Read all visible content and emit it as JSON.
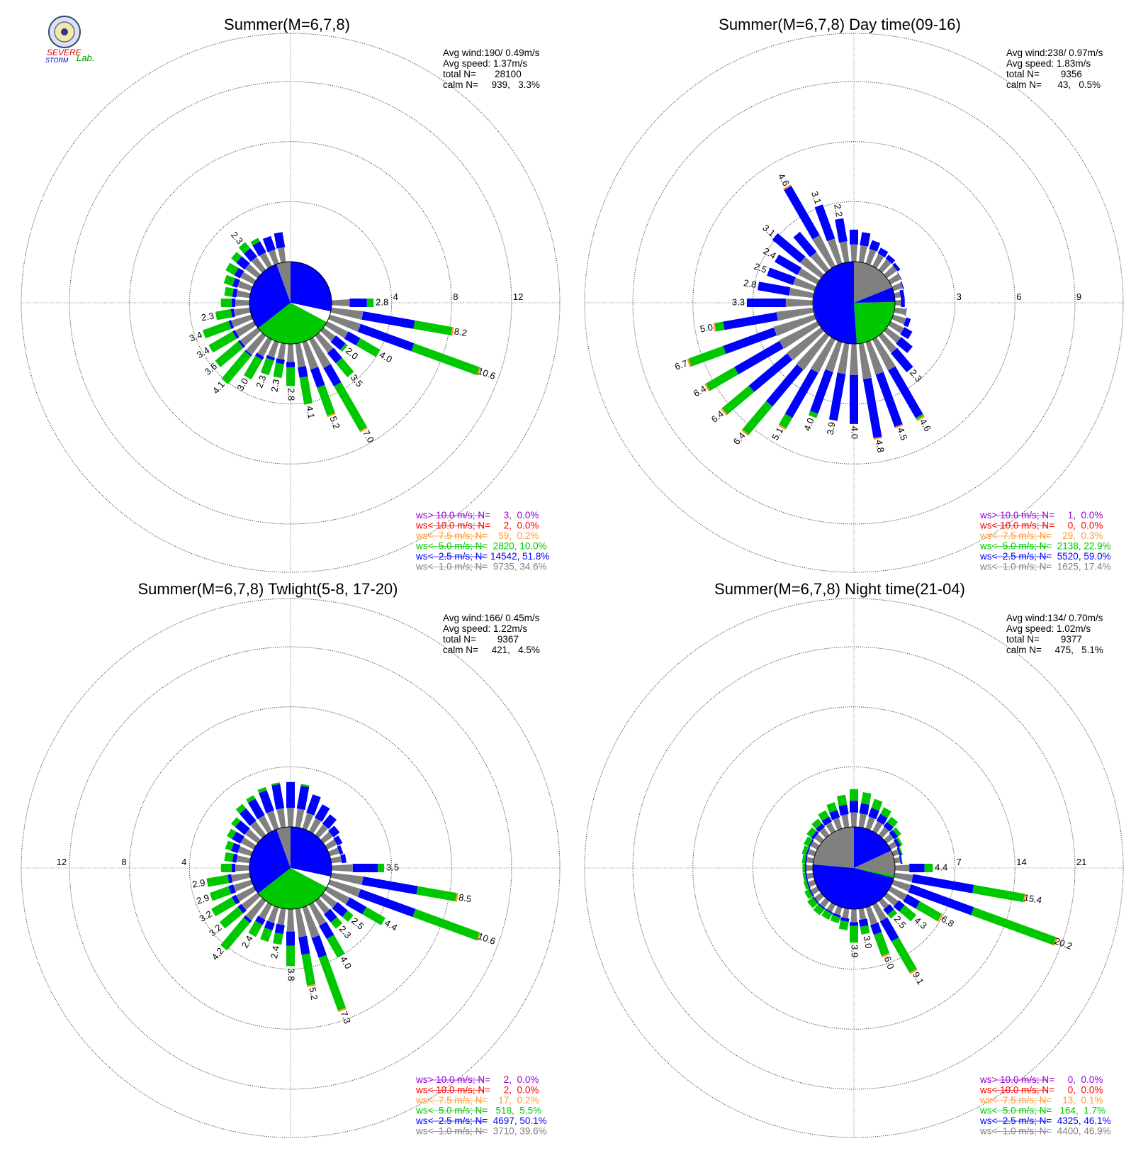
{
  "logo": {
    "line1": "SEVERE",
    "line2": "STORM",
    "lab": "Lab."
  },
  "legend_colors": [
    "#9400d3",
    "#ff0000",
    "#ff9933",
    "#00c800",
    "#0000ff",
    "#808080"
  ],
  "calm_color": "#808080",
  "chart_data": [
    {
      "type": "wind-rose",
      "title": "Summer(M=6,7,8)",
      "info": [
        "Avg wind:190/ 0.49m/s",
        "Avg speed: 1.37m/s",
        "total N=       28100",
        "calm N=     939,   3.3%"
      ],
      "rings": [
        4,
        8,
        12
      ],
      "ring_labels": [
        "4",
        "8",
        "12"
      ],
      "axis_side": "right",
      "rmax": 14,
      "calm_pct": 3.3,
      "pie": [
        {
          "from": 0,
          "to": 102,
          "c": 5
        },
        {
          "from": 102,
          "to": 118,
          "c": 3
        },
        {
          "from": 118,
          "to": 232,
          "c": 4
        },
        {
          "from": 232,
          "to": 340,
          "c": 5
        },
        {
          "from": 340,
          "to": 360,
          "c": 6
        }
      ],
      "bars": [
        [
          0,
          0,
          1.5
        ],
        [
          10,
          0,
          1.2
        ],
        [
          20,
          0,
          1.1
        ],
        [
          30,
          0,
          0.9
        ],
        [
          40,
          0,
          0.8
        ],
        [
          50,
          0,
          0.7
        ],
        [
          60,
          0,
          0.5
        ],
        [
          70,
          0,
          0.4
        ],
        [
          80,
          0,
          0.9
        ],
        [
          90,
          2.8,
          1.6
        ],
        [
          100,
          8.2,
          4.3
        ],
        [
          110,
          10.6,
          4.6
        ],
        [
          120,
          4.0,
          1.5
        ],
        [
          130,
          2.0,
          1.2
        ],
        [
          140,
          3.5,
          1.4
        ],
        [
          150,
          7.0,
          2.2
        ],
        [
          160,
          5.2,
          2.0
        ],
        [
          170,
          4.1,
          1.3
        ],
        [
          180,
          2.8,
          0.8
        ],
        [
          190,
          2.3,
          0.7
        ],
        [
          200,
          2.3,
          0.6
        ],
        [
          210,
          3.0,
          0.7
        ],
        [
          220,
          4.1,
          0.7
        ],
        [
          230,
          3.6,
          0.7
        ],
        [
          240,
          3.4,
          0.7
        ],
        [
          250,
          3.4,
          0.7
        ],
        [
          260,
          2.3,
          0.6
        ],
        [
          270,
          1.9,
          0.6
        ],
        [
          280,
          1.7,
          0.6
        ],
        [
          290,
          1.9,
          0.7
        ],
        [
          300,
          2.1,
          0.8
        ],
        [
          310,
          2.2,
          1.1
        ],
        [
          320,
          2.3,
          1.1
        ],
        [
          330,
          2.1,
          1.2
        ],
        [
          340,
          1.9,
          1.3
        ],
        [
          350,
          2.0,
          1.6
        ]
      ],
      "labeled": [
        {
          "dir": 90,
          "text": "2.8"
        },
        {
          "dir": 100,
          "text": "8.2"
        },
        {
          "dir": 110,
          "text": "10.6"
        },
        {
          "dir": 120,
          "text": "4.0"
        },
        {
          "dir": 130,
          "text": "2.0"
        },
        {
          "dir": 140,
          "text": "3.5"
        },
        {
          "dir": 150,
          "text": "7.0"
        },
        {
          "dir": 160,
          "text": "5.2"
        },
        {
          "dir": 170,
          "text": "4.1"
        },
        {
          "dir": 180,
          "text": "2.8"
        },
        {
          "dir": 190,
          "text": "2.3"
        },
        {
          "dir": 200,
          "text": "2.3"
        },
        {
          "dir": 210,
          "text": "3.0"
        },
        {
          "dir": 220,
          "text": "4.1"
        },
        {
          "dir": 230,
          "text": "3.6"
        },
        {
          "dir": 240,
          "text": "3.4"
        },
        {
          "dir": 250,
          "text": "3.4"
        },
        {
          "dir": 260,
          "text": "2.3"
        },
        {
          "dir": 320,
          "text": "2.3"
        }
      ],
      "legend": [
        "ws> 10.0 m/s; N=     3,  0.0%",
        "ws< 10.0 m/s; N=     2,  0.0%",
        "ws<  7.5 m/s; N=    59,  0.2%",
        "ws<  5.0 m/s; N=  2820, 10.0%",
        "ws<  2.5 m/s; N= 14542, 51.8%",
        "ws<  1.0 m/s; N=  9735, 34.6%"
      ]
    },
    {
      "type": "wind-rose",
      "title": "Summer(M=6,7,8) Day time(09-16)",
      "info": [
        "Avg wind:238/ 0.97m/s",
        "Avg speed: 1.83m/s",
        "total N=        9356",
        "calm N=      43,   0.5%"
      ],
      "rings": [
        3,
        6,
        9
      ],
      "ring_labels": [
        "3",
        "6",
        "9"
      ],
      "axis_side": "right",
      "rmax": 10.5,
      "calm_pct": 0.5,
      "pie": [
        {
          "from": 0,
          "to": 68,
          "c": 6
        },
        {
          "from": 68,
          "to": 89,
          "c": 5
        },
        {
          "from": 89,
          "to": 176,
          "c": 4
        },
        {
          "from": 176,
          "to": 360,
          "c": 5
        }
      ],
      "bars": [
        [
          0,
          1.6,
          1.6
        ],
        [
          10,
          1.5,
          1.3
        ],
        [
          20,
          1.2,
          1.0
        ],
        [
          30,
          1.0,
          0.8
        ],
        [
          40,
          0.9,
          0.7
        ],
        [
          50,
          0.8,
          0.6
        ],
        [
          60,
          0.6,
          0.5
        ],
        [
          70,
          0.5,
          0.4
        ],
        [
          80,
          0.3,
          0.2
        ],
        [
          90,
          0.3,
          0.2
        ],
        [
          100,
          0.6,
          0.5
        ],
        [
          110,
          0.9,
          0.7
        ],
        [
          120,
          1.2,
          0.9
        ],
        [
          130,
          1.6,
          1.1
        ],
        [
          140,
          2.3,
          1.8
        ],
        [
          150,
          4.6,
          3.4
        ],
        [
          160,
          4.5,
          3.5
        ],
        [
          170,
          4.8,
          3.9
        ],
        [
          180,
          4.0,
          3.2
        ],
        [
          190,
          3.9,
          3.0
        ],
        [
          200,
          4.0,
          2.8
        ],
        [
          210,
          5.1,
          3.3
        ],
        [
          220,
          6.4,
          3.2
        ],
        [
          230,
          6.4,
          3.3
        ],
        [
          240,
          6.4,
          3.4
        ],
        [
          250,
          6.7,
          3.5
        ],
        [
          260,
          5.0,
          3.4
        ],
        [
          270,
          3.3,
          2.9
        ],
        [
          280,
          2.8,
          2.5
        ],
        [
          290,
          2.5,
          2.2
        ],
        [
          300,
          2.4,
          2.1
        ],
        [
          310,
          3.1,
          2.8
        ],
        [
          320,
          2.4,
          2.2
        ],
        [
          330,
          4.6,
          4.1
        ],
        [
          340,
          3.1,
          2.9
        ],
        [
          350,
          2.2,
          2.1
        ]
      ],
      "labeled": [
        {
          "dir": 140,
          "text": "2.3"
        },
        {
          "dir": 150,
          "text": "4.6"
        },
        {
          "dir": 160,
          "text": "4.5"
        },
        {
          "dir": 170,
          "text": "4.8"
        },
        {
          "dir": 180,
          "text": "4.0"
        },
        {
          "dir": 190,
          "text": "3.9"
        },
        {
          "dir": 200,
          "text": "4.0"
        },
        {
          "dir": 210,
          "text": "5.1"
        },
        {
          "dir": 220,
          "text": "6.4"
        },
        {
          "dir": 230,
          "text": "6.4"
        },
        {
          "dir": 240,
          "text": "6.4"
        },
        {
          "dir": 250,
          "text": "6.7"
        },
        {
          "dir": 260,
          "text": "5.0"
        },
        {
          "dir": 270,
          "text": "3.3"
        },
        {
          "dir": 280,
          "text": "2.8"
        },
        {
          "dir": 290,
          "text": "2.5"
        },
        {
          "dir": 300,
          "text": "2.4"
        },
        {
          "dir": 310,
          "text": "3.1"
        },
        {
          "dir": 330,
          "text": "4.6"
        },
        {
          "dir": 340,
          "text": "3.1"
        },
        {
          "dir": 350,
          "text": "2.2"
        }
      ],
      "legend": [
        "ws> 10.0 m/s; N=     1,  0.0%",
        "ws< 10.0 m/s; N=     0,  0.0%",
        "ws<  7.5 m/s; N=    29,  0.3%",
        "ws<  5.0 m/s; N=  2138, 22.9%",
        "ws<  2.5 m/s; N=  5520, 59.0%",
        "ws<  1.0 m/s; N=  1625, 17.4%"
      ]
    },
    {
      "type": "wind-rose",
      "title": "Summer(M=6,7,8) Twlight(5-8, 17-20)",
      "info": [
        "Avg wind:166/ 0.45m/s",
        "Avg speed: 1.22m/s",
        "total N=        9367",
        "calm N=     421,   4.5%"
      ],
      "rings": [
        4,
        8,
        12
      ],
      "ring_labels": [
        "4",
        "8",
        "12"
      ],
      "axis_side": "left",
      "rmax": 14,
      "calm_pct": 4.5,
      "pie": [
        {
          "from": 0,
          "to": 102,
          "c": 5
        },
        {
          "from": 102,
          "to": 118,
          "c": 3
        },
        {
          "from": 118,
          "to": 232,
          "c": 4
        },
        {
          "from": 232,
          "to": 340,
          "c": 5
        },
        {
          "from": 340,
          "to": 360,
          "c": 6
        }
      ],
      "bars": [
        [
          0,
          3.0,
          2.2
        ],
        [
          10,
          2.9,
          2.0
        ],
        [
          20,
          2.4,
          1.7
        ],
        [
          30,
          2.0,
          1.5
        ],
        [
          40,
          1.7,
          1.3
        ],
        [
          50,
          1.3,
          1.0
        ],
        [
          60,
          1.1,
          0.8
        ],
        [
          70,
          0.9,
          0.7
        ],
        [
          80,
          1.0,
          0.8
        ],
        [
          90,
          3.5,
          2.2
        ],
        [
          100,
          8.5,
          4.5
        ],
        [
          110,
          10.6,
          4.7
        ],
        [
          120,
          4.4,
          1.9
        ],
        [
          130,
          2.5,
          1.3
        ],
        [
          140,
          2.3,
          1.1
        ],
        [
          150,
          4.0,
          1.6
        ],
        [
          160,
          7.3,
          2.2
        ],
        [
          170,
          5.2,
          1.9
        ],
        [
          180,
          3.8,
          1.5
        ],
        [
          190,
          2.4,
          1.0
        ],
        [
          200,
          2.4,
          0.9
        ],
        [
          210,
          2.4,
          0.8
        ],
        [
          220,
          4.2,
          0.8
        ],
        [
          230,
          3.2,
          0.8
        ],
        [
          240,
          3.2,
          0.8
        ],
        [
          250,
          2.9,
          0.8
        ],
        [
          260,
          2.9,
          0.7
        ],
        [
          270,
          1.9,
          0.6
        ],
        [
          280,
          1.7,
          0.6
        ],
        [
          290,
          1.8,
          0.8
        ],
        [
          300,
          2.0,
          1.0
        ],
        [
          310,
          2.2,
          1.2
        ],
        [
          320,
          2.6,
          1.5
        ],
        [
          330,
          2.7,
          1.7
        ],
        [
          340,
          2.9,
          1.9
        ],
        [
          350,
          3.0,
          2.1
        ]
      ],
      "labeled": [
        {
          "dir": 90,
          "text": "3.5"
        },
        {
          "dir": 100,
          "text": "8.5"
        },
        {
          "dir": 110,
          "text": "10.6"
        },
        {
          "dir": 120,
          "text": "4.4"
        },
        {
          "dir": 130,
          "text": "2.5"
        },
        {
          "dir": 140,
          "text": "2.3"
        },
        {
          "dir": 150,
          "text": "4.0"
        },
        {
          "dir": 160,
          "text": "7.3"
        },
        {
          "dir": 170,
          "text": "5.2"
        },
        {
          "dir": 180,
          "text": "3.8"
        },
        {
          "dir": 190,
          "text": "2.4"
        },
        {
          "dir": 210,
          "text": "2.4"
        },
        {
          "dir": 220,
          "text": "4.2"
        },
        {
          "dir": 230,
          "text": "3.2"
        },
        {
          "dir": 240,
          "text": "3.2"
        },
        {
          "dir": 250,
          "text": "2.9"
        },
        {
          "dir": 260,
          "text": "2.9"
        }
      ],
      "legend": [
        "ws> 10.0 m/s; N=     2,  0.0%",
        "ws< 10.0 m/s; N=     2,  0.0%",
        "ws<  7.5 m/s; N=    17,  0.2%",
        "ws<  5.0 m/s; N=   518,  5.5%",
        "ws<  2.5 m/s; N=  4697, 50.1%",
        "ws<  1.0 m/s; N=  3710, 39.6%"
      ]
    },
    {
      "type": "wind-rose",
      "title": "Summer(M=6,7,8) Night time(21-04)",
      "info": [
        "Avg wind:134/ 0.70m/s",
        "Avg speed: 1.02m/s",
        "total N=        9377",
        "calm N=     475,   5.1%"
      ],
      "rings": [
        7,
        14,
        21
      ],
      "ring_labels": [
        "7",
        "14",
        "21"
      ],
      "axis_side": "right",
      "rmax": 24.5,
      "calm_pct": 5.1,
      "pie": [
        {
          "from": 0,
          "to": 65,
          "c": 5
        },
        {
          "from": 65,
          "to": 100,
          "c": 6
        },
        {
          "from": 100,
          "to": 104,
          "c": 4
        },
        {
          "from": 104,
          "to": 275,
          "c": 5
        },
        {
          "from": 275,
          "to": 360,
          "c": 6
        }
      ],
      "bars": [
        [
          0,
          4.4,
          2.0
        ],
        [
          10,
          4.1,
          1.8
        ],
        [
          20,
          3.6,
          1.6
        ],
        [
          30,
          3.1,
          1.4
        ],
        [
          40,
          2.6,
          1.1
        ],
        [
          50,
          2.0,
          0.9
        ],
        [
          60,
          1.5,
          0.7
        ],
        [
          70,
          1.1,
          0.5
        ],
        [
          80,
          0.9,
          0.4
        ],
        [
          90,
          4.4,
          2.4
        ],
        [
          100,
          15.4,
          8.0
        ],
        [
          110,
          20.2,
          8.6
        ],
        [
          120,
          6.8,
          2.5
        ],
        [
          130,
          4.3,
          1.5
        ],
        [
          140,
          2.5,
          1.2
        ],
        [
          150,
          9.1,
          3.5
        ],
        [
          160,
          6.0,
          2.0
        ],
        [
          170,
          3.0,
          1.3
        ],
        [
          180,
          3.9,
          1.0
        ],
        [
          190,
          2.5,
          0.8
        ],
        [
          200,
          1.9,
          0.6
        ],
        [
          210,
          1.9,
          0.5
        ],
        [
          220,
          2.0,
          0.5
        ],
        [
          230,
          1.9,
          0.5
        ],
        [
          240,
          1.6,
          0.4
        ],
        [
          250,
          1.3,
          0.4
        ],
        [
          260,
          1.2,
          0.3
        ],
        [
          270,
          1.2,
          0.3
        ],
        [
          280,
          1.3,
          0.3
        ],
        [
          290,
          1.5,
          0.4
        ],
        [
          300,
          1.7,
          0.5
        ],
        [
          310,
          2.0,
          0.7
        ],
        [
          320,
          2.3,
          0.9
        ],
        [
          330,
          2.7,
          1.1
        ],
        [
          340,
          3.2,
          1.4
        ],
        [
          350,
          3.8,
          1.7
        ]
      ],
      "labeled": [
        {
          "dir": 90,
          "text": "4.4"
        },
        {
          "dir": 100,
          "text": "15.4"
        },
        {
          "dir": 110,
          "text": "20.2"
        },
        {
          "dir": 120,
          "text": "6.8"
        },
        {
          "dir": 130,
          "text": "4.3"
        },
        {
          "dir": 140,
          "text": "2.5"
        },
        {
          "dir": 150,
          "text": "9.1"
        },
        {
          "dir": 160,
          "text": "6.0"
        },
        {
          "dir": 170,
          "text": "3.0"
        },
        {
          "dir": 180,
          "text": "3.9"
        }
      ],
      "legend": [
        "ws> 10.0 m/s; N=     0,  0.0%",
        "ws< 10.0 m/s; N=     0,  0.0%",
        "ws<  7.5 m/s; N=    13,  0.1%",
        "ws<  5.0 m/s; N=   164,  1.7%",
        "ws<  2.5 m/s; N=  4325, 46.1%",
        "ws<  1.0 m/s; N=  4400, 46.9%"
      ]
    }
  ]
}
